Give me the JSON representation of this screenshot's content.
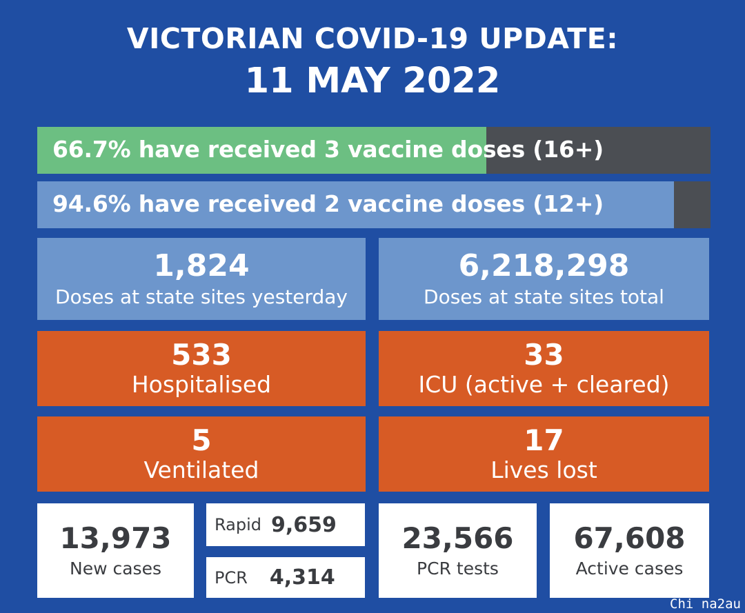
{
  "header": {
    "title_line1": "VICTORIAN COVID-19 UPDATE:",
    "title_line2": "11 MAY 2022"
  },
  "vaccination": [
    {
      "text": "66.7% have received 3 vaccine doses (16+)",
      "percent": 66.7,
      "color": "#6cbf82"
    },
    {
      "text": "94.6% have received 2 vaccine doses (12+)",
      "percent": 94.6,
      "color": "#6d96cc"
    }
  ],
  "doses": {
    "yesterday": {
      "value": "1,824",
      "label": "Doses at state sites yesterday"
    },
    "total": {
      "value": "6,218,298",
      "label": "Doses at state sites total"
    }
  },
  "hospital": {
    "hospitalised": {
      "value": "533",
      "label": "Hospitalised"
    },
    "icu": {
      "value": "33",
      "label": "ICU (active + cleared)"
    },
    "ventilated": {
      "value": "5",
      "label": "Ventilated"
    },
    "lives_lost": {
      "value": "17",
      "label": "Lives lost"
    }
  },
  "cases": {
    "new_cases": {
      "value": "13,973",
      "label": "New cases"
    },
    "rapid": {
      "label": "Rapid",
      "value": "9,659"
    },
    "pcr": {
      "label": "PCR",
      "value": "4,314"
    },
    "pcr_tests": {
      "value": "23,566",
      "label": "PCR tests"
    },
    "active_cases": {
      "value": "67,608",
      "label": "Active cases"
    }
  },
  "watermark": "Chi na2au",
  "colors": {
    "background": "#1f4ea3",
    "blue_panel": "#6d96cc",
    "orange_panel": "#d75b25",
    "green_fill": "#6cbf82",
    "dark_track": "#4b4e53"
  }
}
